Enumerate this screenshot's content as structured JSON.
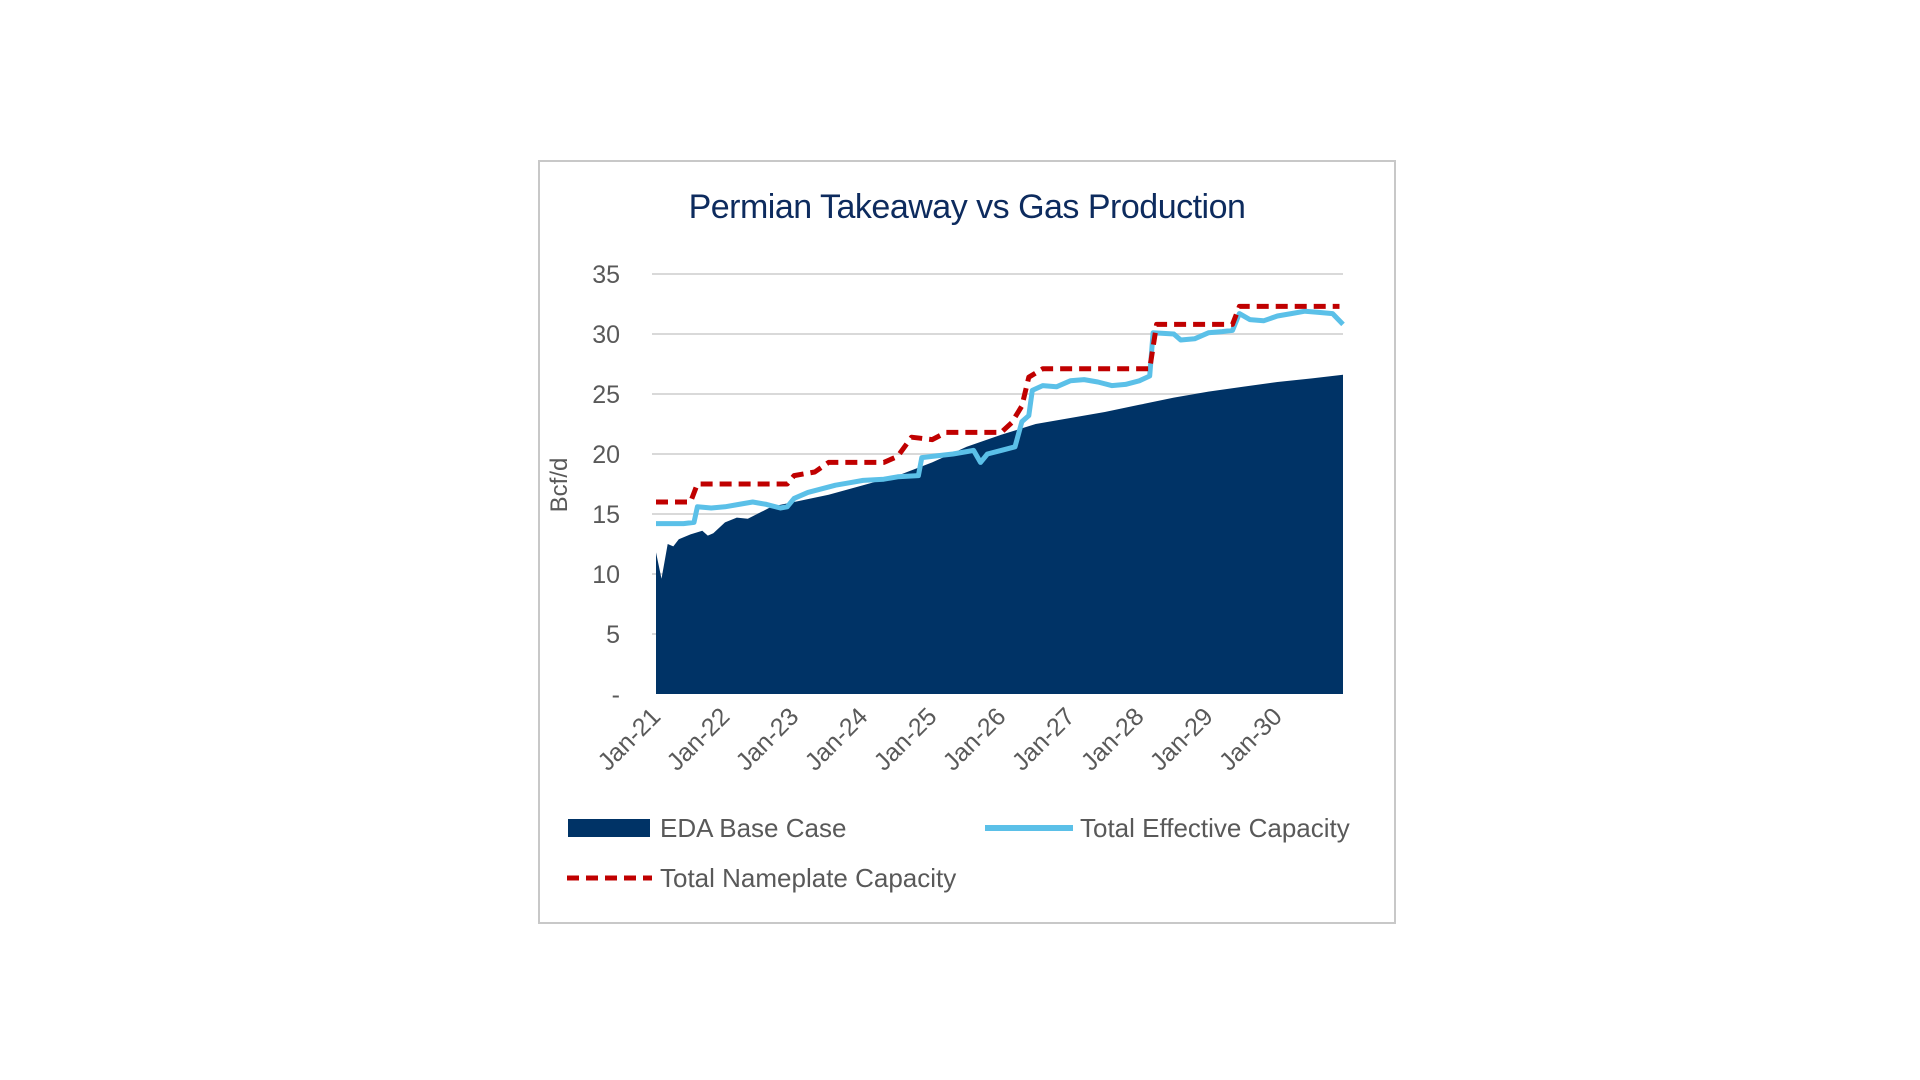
{
  "chart_data": {
    "type": "area",
    "title": "Permian Takeaway vs Gas Production",
    "xlabel": "",
    "ylabel": "Bcf/d",
    "ylim": [
      0,
      35
    ],
    "yticks": [
      0,
      5,
      10,
      15,
      20,
      25,
      30,
      35
    ],
    "ytick_labels": [
      "-",
      "5",
      "10",
      "15",
      "20",
      "25",
      "30",
      "35"
    ],
    "xticks": [
      "Jan-21",
      "Jan-22",
      "Jan-23",
      "Jan-24",
      "Jan-25",
      "Jan-26",
      "Jan-27",
      "Jan-28",
      "Jan-29",
      "Jan-30"
    ],
    "x_range_years": [
      2021.0,
      2030.95
    ],
    "grid": true,
    "legend_position": "bottom",
    "colors": {
      "base": "#003366",
      "effective": "#5bc0e8",
      "nameplate": "#c00000",
      "grid": "#d9d9d9",
      "title": "#0d2b5e"
    },
    "series": [
      {
        "name": "EDA Base Case",
        "kind": "area",
        "points": [
          [
            2021.0,
            11.8
          ],
          [
            2021.08,
            9.6
          ],
          [
            2021.17,
            12.5
          ],
          [
            2021.25,
            12.3
          ],
          [
            2021.33,
            12.9
          ],
          [
            2021.5,
            13.3
          ],
          [
            2021.67,
            13.6
          ],
          [
            2021.75,
            13.2
          ],
          [
            2021.83,
            13.4
          ],
          [
            2022.0,
            14.3
          ],
          [
            2022.17,
            14.7
          ],
          [
            2022.33,
            14.6
          ],
          [
            2022.5,
            15.1
          ],
          [
            2022.67,
            15.6
          ],
          [
            2022.83,
            15.8
          ],
          [
            2023.0,
            16.0
          ],
          [
            2023.5,
            16.6
          ],
          [
            2024.0,
            17.4
          ],
          [
            2024.5,
            18.2
          ],
          [
            2025.0,
            19.3
          ],
          [
            2025.5,
            20.6
          ],
          [
            2026.0,
            21.6
          ],
          [
            2026.5,
            22.5
          ],
          [
            2027.0,
            23.0
          ],
          [
            2027.5,
            23.5
          ],
          [
            2028.0,
            24.1
          ],
          [
            2028.5,
            24.7
          ],
          [
            2029.0,
            25.2
          ],
          [
            2029.5,
            25.6
          ],
          [
            2030.0,
            26.0
          ],
          [
            2030.5,
            26.3
          ],
          [
            2030.95,
            26.6
          ]
        ]
      },
      {
        "name": "Total Effective Capacity",
        "kind": "line",
        "points": [
          [
            2021.0,
            14.2
          ],
          [
            2021.4,
            14.2
          ],
          [
            2021.55,
            14.3
          ],
          [
            2021.6,
            15.6
          ],
          [
            2021.8,
            15.5
          ],
          [
            2022.0,
            15.6
          ],
          [
            2022.2,
            15.8
          ],
          [
            2022.4,
            16.0
          ],
          [
            2022.6,
            15.8
          ],
          [
            2022.8,
            15.5
          ],
          [
            2022.9,
            15.6
          ],
          [
            2023.0,
            16.3
          ],
          [
            2023.2,
            16.8
          ],
          [
            2023.4,
            17.1
          ],
          [
            2023.6,
            17.4
          ],
          [
            2023.8,
            17.6
          ],
          [
            2024.0,
            17.8
          ],
          [
            2024.3,
            17.9
          ],
          [
            2024.5,
            18.1
          ],
          [
            2024.8,
            18.2
          ],
          [
            2024.85,
            19.7
          ],
          [
            2025.0,
            19.8
          ],
          [
            2025.3,
            20.0
          ],
          [
            2025.5,
            20.2
          ],
          [
            2025.6,
            20.3
          ],
          [
            2025.7,
            19.3
          ],
          [
            2025.8,
            20.0
          ],
          [
            2026.0,
            20.3
          ],
          [
            2026.2,
            20.6
          ],
          [
            2026.3,
            22.7
          ],
          [
            2026.4,
            23.2
          ],
          [
            2026.45,
            25.3
          ],
          [
            2026.6,
            25.7
          ],
          [
            2026.8,
            25.6
          ],
          [
            2027.0,
            26.1
          ],
          [
            2027.2,
            26.2
          ],
          [
            2027.4,
            26.0
          ],
          [
            2027.6,
            25.7
          ],
          [
            2027.8,
            25.8
          ],
          [
            2028.0,
            26.1
          ],
          [
            2028.15,
            26.5
          ],
          [
            2028.2,
            30.1
          ],
          [
            2028.5,
            30.0
          ],
          [
            2028.6,
            29.5
          ],
          [
            2028.8,
            29.6
          ],
          [
            2029.0,
            30.1
          ],
          [
            2029.2,
            30.2
          ],
          [
            2029.35,
            30.3
          ],
          [
            2029.45,
            31.7
          ],
          [
            2029.6,
            31.2
          ],
          [
            2029.8,
            31.1
          ],
          [
            2030.0,
            31.5
          ],
          [
            2030.2,
            31.7
          ],
          [
            2030.4,
            31.9
          ],
          [
            2030.6,
            31.8
          ],
          [
            2030.8,
            31.7
          ],
          [
            2030.95,
            30.8
          ]
        ]
      },
      {
        "name": "Total Nameplate Capacity",
        "kind": "dashed-line",
        "points": [
          [
            2021.0,
            16.0
          ],
          [
            2021.5,
            16.0
          ],
          [
            2021.6,
            17.5
          ],
          [
            2022.0,
            17.5
          ],
          [
            2022.9,
            17.5
          ],
          [
            2023.0,
            18.2
          ],
          [
            2023.3,
            18.5
          ],
          [
            2023.5,
            19.3
          ],
          [
            2024.0,
            19.3
          ],
          [
            2024.3,
            19.3
          ],
          [
            2024.5,
            19.8
          ],
          [
            2024.7,
            21.4
          ],
          [
            2025.0,
            21.2
          ],
          [
            2025.2,
            21.8
          ],
          [
            2026.0,
            21.8
          ],
          [
            2026.15,
            22.6
          ],
          [
            2026.3,
            24.0
          ],
          [
            2026.4,
            26.4
          ],
          [
            2026.6,
            27.1
          ],
          [
            2027.0,
            27.1
          ],
          [
            2028.0,
            27.1
          ],
          [
            2028.15,
            27.1
          ],
          [
            2028.25,
            30.8
          ],
          [
            2029.0,
            30.8
          ],
          [
            2029.35,
            30.8
          ],
          [
            2029.45,
            32.3
          ],
          [
            2030.0,
            32.3
          ],
          [
            2030.9,
            32.3
          ]
        ]
      }
    ]
  }
}
